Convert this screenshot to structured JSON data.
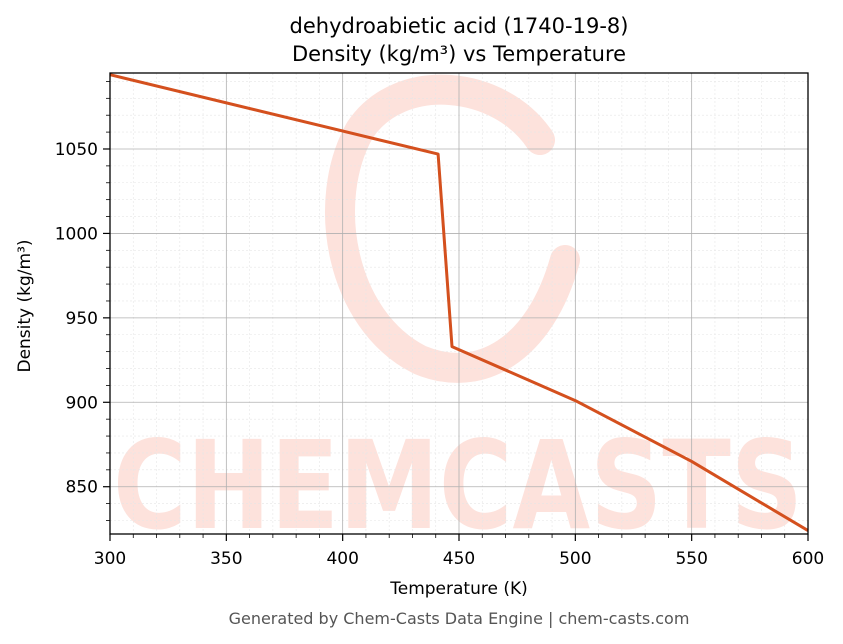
{
  "chart_data": {
    "type": "line",
    "title": "dehydroabietic acid (1740-19-8)",
    "subtitle": "Density (kg/m³) vs Temperature",
    "xlabel": "Temperature (K)",
    "ylabel": "Density (kg/m³)",
    "xlim": [
      300,
      600
    ],
    "ylim": [
      822,
      1095
    ],
    "x_ticks": [
      300,
      350,
      400,
      450,
      500,
      550,
      600
    ],
    "y_ticks": [
      850,
      900,
      950,
      1000,
      1050
    ],
    "grid": true,
    "series": [
      {
        "x": [
          300,
          441,
          447,
          500,
          550,
          600
        ],
        "y": [
          1094,
          1047,
          933,
          901,
          865,
          824
        ]
      }
    ],
    "line_color": "#d4501e"
  },
  "watermark": {
    "text": "CHEMCASTS",
    "color": "#fde2dc"
  },
  "footer": "Generated by Chem-Casts Data Engine | chem-casts.com"
}
